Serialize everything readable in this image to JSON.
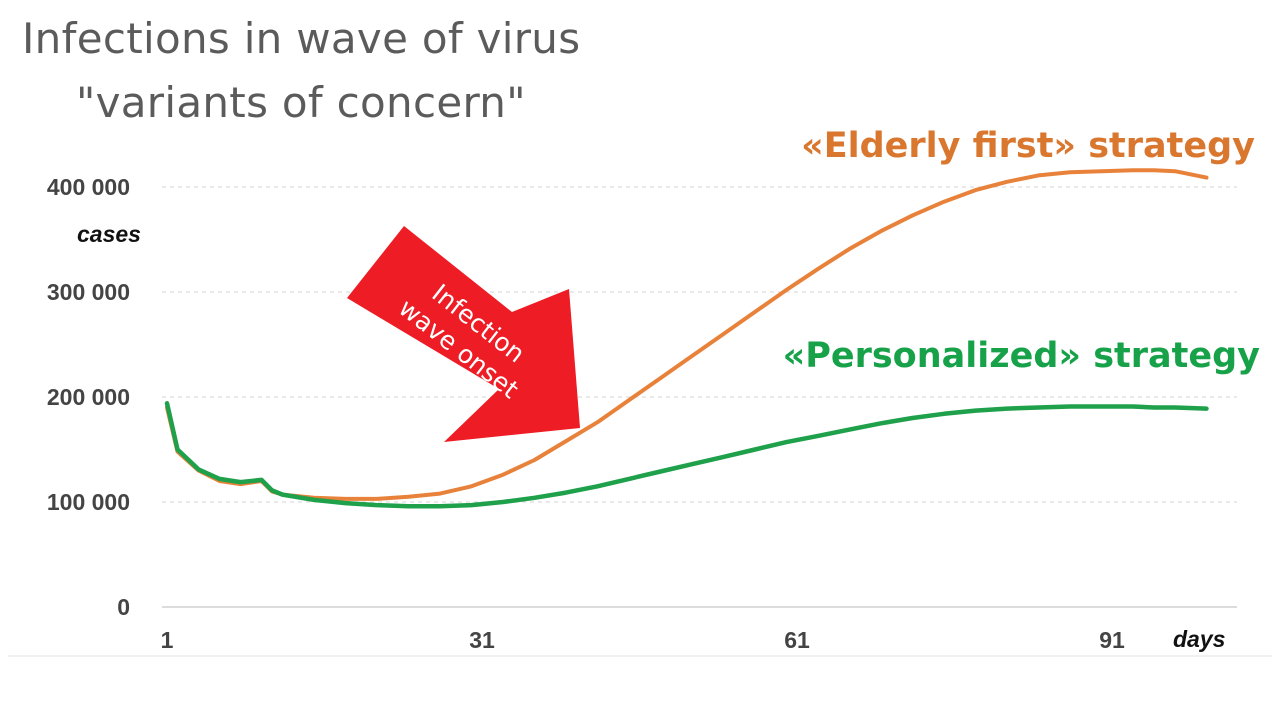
{
  "chart_data": {
    "type": "line",
    "title_lines": [
      "Infections in wave of virus",
      "\"variants of concern\""
    ],
    "xlabel": "days",
    "ylabel": "cases",
    "xlim": [
      1,
      101
    ],
    "ylim": [
      0,
      400000
    ],
    "x_ticks": [
      1,
      31,
      61,
      91
    ],
    "y_ticks": [
      0,
      100000,
      200000,
      300000,
      400000
    ],
    "x_tick_labels": [
      "1",
      "31",
      "61",
      "91"
    ],
    "y_tick_labels": [
      "0",
      "100 000",
      "200 000",
      "300 000",
      "400 000"
    ],
    "grid": "horizontal",
    "series": [
      {
        "name": "«Elderly first» strategy",
        "color": "#E8823A",
        "label_color": "#D9772E",
        "x": [
          1,
          2,
          4,
          6,
          8,
          10,
          11,
          12,
          15,
          18,
          21,
          24,
          27,
          30,
          33,
          36,
          39,
          42,
          45,
          48,
          51,
          54,
          57,
          60,
          63,
          66,
          69,
          72,
          75,
          78,
          81,
          84,
          87,
          90,
          93,
          95,
          97,
          100
        ],
        "y": [
          190000,
          148000,
          130000,
          120000,
          117000,
          120000,
          110000,
          107000,
          104000,
          103000,
          103000,
          105000,
          108000,
          115000,
          126000,
          140000,
          158000,
          176000,
          197000,
          218000,
          239000,
          260000,
          281000,
          302000,
          322000,
          341000,
          358000,
          373000,
          386000,
          397000,
          405000,
          411000,
          414000,
          415000,
          416000,
          416000,
          415000,
          409000
        ]
      },
      {
        "name": "«Personalized» strategy",
        "color": "#1FA04A",
        "label_color": "#17A24A",
        "x": [
          1,
          2,
          4,
          6,
          8,
          10,
          11,
          12,
          15,
          18,
          21,
          24,
          27,
          30,
          33,
          36,
          39,
          42,
          45,
          48,
          51,
          54,
          57,
          60,
          63,
          66,
          69,
          72,
          75,
          78,
          81,
          84,
          87,
          90,
          93,
          95,
          97,
          100
        ],
        "y": [
          194000,
          150000,
          131000,
          122000,
          119000,
          121000,
          111000,
          107000,
          102000,
          99000,
          97000,
          96000,
          96000,
          97000,
          100000,
          104000,
          109000,
          115000,
          122000,
          129000,
          136000,
          143000,
          150000,
          157000,
          163000,
          169000,
          175000,
          180000,
          184000,
          187000,
          189000,
          190000,
          191000,
          191000,
          191000,
          190000,
          190000,
          189000
        ]
      }
    ],
    "annotations": [
      {
        "name": "wave-onset-arrow",
        "text_lines": [
          "Infection",
          "wave onset"
        ],
        "color": "#EE1C24"
      }
    ]
  }
}
